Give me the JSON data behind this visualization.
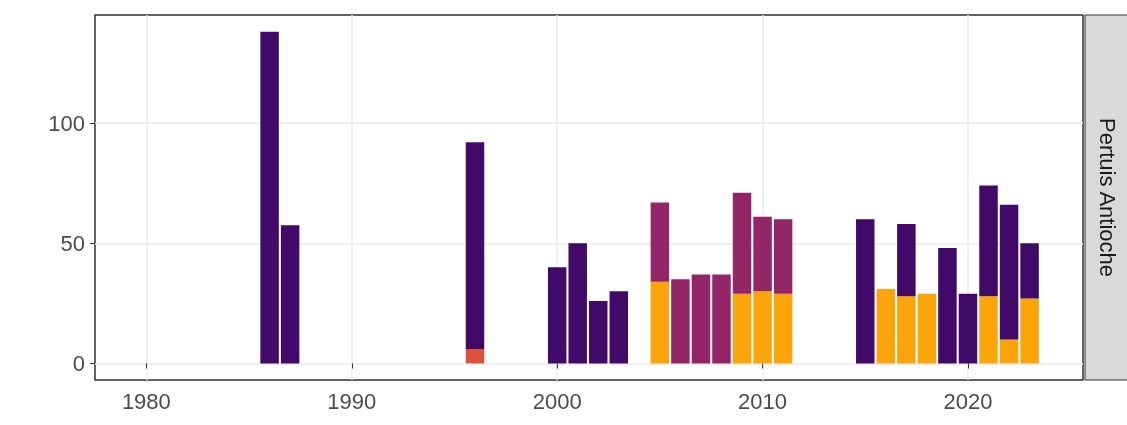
{
  "chart_data": {
    "type": "bar",
    "title": "Pertuis Antioche",
    "stacked": true,
    "x": [
      1986,
      1987,
      1996,
      2000,
      2001,
      2002,
      2003,
      2005,
      2006,
      2007,
      2008,
      2009,
      2010,
      2011,
      2015,
      2016,
      2017,
      2018,
      2019,
      2020,
      2021,
      2022,
      2023
    ],
    "series": [
      {
        "color": "#fca50a",
        "values": [
          null,
          null,
          null,
          null,
          null,
          null,
          null,
          34,
          null,
          null,
          null,
          29,
          30,
          29,
          null,
          31,
          28,
          29,
          null,
          null,
          28,
          10,
          27
        ]
      },
      {
        "color": "#dd513a",
        "values": [
          null,
          null,
          6,
          null,
          null,
          null,
          null,
          null,
          null,
          null,
          null,
          null,
          null,
          null,
          null,
          null,
          null,
          null,
          null,
          null,
          null,
          null,
          null
        ]
      },
      {
        "color": "#932667",
        "values": [
          null,
          null,
          null,
          null,
          null,
          null,
          null,
          33,
          35,
          37,
          37,
          42,
          31,
          31,
          null,
          null,
          null,
          null,
          null,
          null,
          null,
          null,
          null
        ]
      },
      {
        "color": "#420a68",
        "values": [
          138,
          57.5,
          86,
          40,
          50,
          26,
          30,
          null,
          null,
          null,
          null,
          null,
          null,
          null,
          60,
          null,
          30,
          null,
          48,
          29,
          46,
          56,
          23
        ]
      }
    ],
    "xlim": [
      1977.5,
      2025.6
    ],
    "xticks": [
      1980,
      1990,
      2000,
      2010,
      2020
    ],
    "ylim": [
      -6.9,
      145
    ],
    "yticks": [
      0,
      50,
      100
    ],
    "grid": true
  }
}
